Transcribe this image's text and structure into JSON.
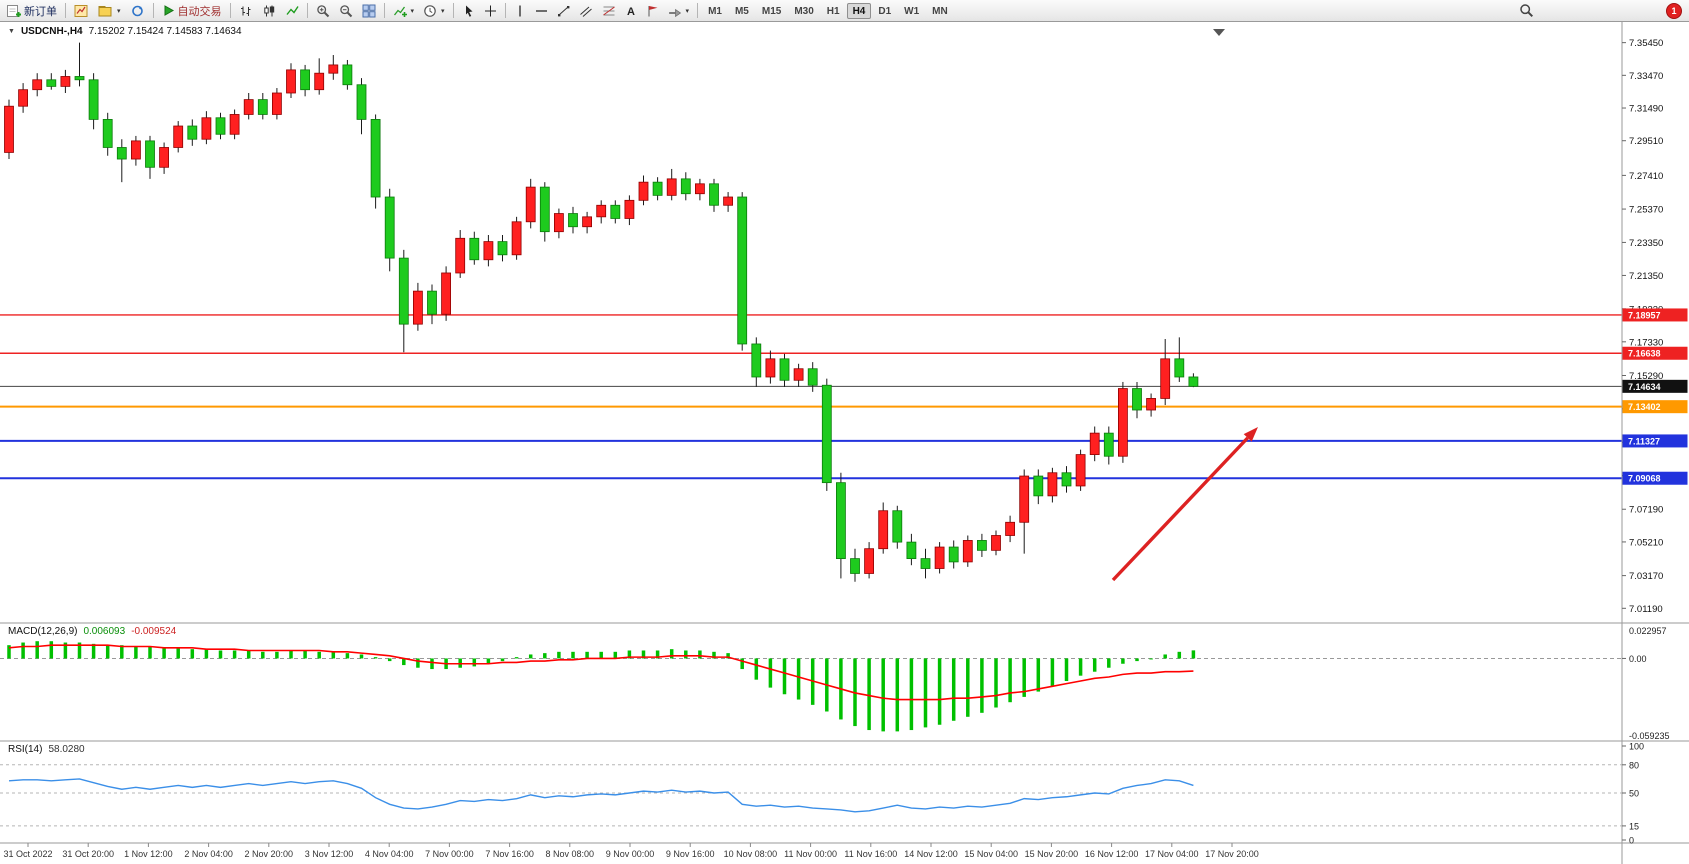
{
  "toolbar": {
    "new_order_label": "新订单",
    "autotrade_label": "自动交易",
    "timeframes": [
      "M1",
      "M5",
      "M15",
      "M30",
      "H1",
      "H4",
      "D1",
      "W1",
      "MN"
    ],
    "active_timeframe": "H4",
    "notification_count": "1"
  },
  "chart": {
    "title": "USDCNH-,H4",
    "quote_line": "7.15202 7.15424 7.14583 7.14634"
  },
  "macd": {
    "name": "MACD(12,26,9)",
    "value_main": "0.006093",
    "value_signal": "-0.009524",
    "scale": [
      "0.022957",
      "0.00",
      "-0.059235"
    ]
  },
  "rsi": {
    "name": "RSI(14)",
    "value": "58.0280",
    "scale": [
      "100",
      "80",
      "50",
      "15",
      "0"
    ]
  },
  "chart_data": {
    "type": "candlestick",
    "symbol": "USDCNH-",
    "period": "H4",
    "title": "USDCNH-,H4",
    "ylim": [
      7.003,
      7.367
    ],
    "up_color": "#ff2020",
    "down_color": "#1ecb1e",
    "price_ticks": [
      "7.35450",
      "7.33470",
      "7.31490",
      "7.29510",
      "7.27410",
      "7.25370",
      "7.23350",
      "7.21350",
      "7.19330",
      "7.17330",
      "7.15290",
      "7.13270",
      "7.11250",
      "7.09230",
      "7.07190",
      "7.05210",
      "7.03170",
      "7.01190"
    ],
    "hlines": [
      {
        "price": 7.18957,
        "label": "7.18957",
        "color": "#ee2222",
        "width": 1.4
      },
      {
        "price": 7.16638,
        "label": "7.16638",
        "color": "#ee2222",
        "width": 1.4
      },
      {
        "price": 7.14634,
        "label": "7.14634",
        "color": "#444444",
        "width": 1,
        "badge": "#111111"
      },
      {
        "price": 7.13402,
        "label": "7.13402",
        "color": "#ff9900",
        "width": 2
      },
      {
        "price": 7.11327,
        "label": "7.11327",
        "color": "#2233dd",
        "width": 2
      },
      {
        "price": 7.09068,
        "label": "7.09068",
        "color": "#2233dd",
        "width": 2
      }
    ],
    "time_labels": [
      "31 Oct 2022",
      "31 Oct 20:00",
      "1 Nov 12:00",
      "2 Nov 04:00",
      "2 Nov 20:00",
      "3 Nov 12:00",
      "4 Nov 04:00",
      "7 Nov 00:00",
      "7 Nov 16:00",
      "8 Nov 08:00",
      "9 Nov 00:00",
      "9 Nov 16:00",
      "10 Nov 08:00",
      "11 Nov 00:00",
      "11 Nov 16:00",
      "14 Nov 12:00",
      "15 Nov 04:00",
      "15 Nov 20:00",
      "16 Nov 12:00",
      "17 Nov 04:00",
      "17 Nov 20:00"
    ],
    "ohlc": [
      [
        7.288,
        7.32,
        7.284,
        7.316
      ],
      [
        7.316,
        7.33,
        7.312,
        7.326
      ],
      [
        7.326,
        7.336,
        7.322,
        7.332
      ],
      [
        7.332,
        7.336,
        7.326,
        7.328
      ],
      [
        7.328,
        7.338,
        7.324,
        7.334
      ],
      [
        7.334,
        7.3545,
        7.328,
        7.332
      ],
      [
        7.332,
        7.336,
        7.302,
        7.308
      ],
      [
        7.308,
        7.312,
        7.286,
        7.291
      ],
      [
        7.291,
        7.296,
        7.27,
        7.284
      ],
      [
        7.284,
        7.298,
        7.28,
        7.295
      ],
      [
        7.295,
        7.298,
        7.272,
        7.279
      ],
      [
        7.279,
        7.294,
        7.275,
        7.291
      ],
      [
        7.291,
        7.307,
        7.288,
        7.304
      ],
      [
        7.304,
        7.308,
        7.292,
        7.296
      ],
      [
        7.296,
        7.313,
        7.293,
        7.309
      ],
      [
        7.309,
        7.312,
        7.296,
        7.299
      ],
      [
        7.299,
        7.314,
        7.296,
        7.311
      ],
      [
        7.311,
        7.324,
        7.308,
        7.32
      ],
      [
        7.32,
        7.324,
        7.308,
        7.311
      ],
      [
        7.311,
        7.327,
        7.308,
        7.324
      ],
      [
        7.324,
        7.342,
        7.321,
        7.338
      ],
      [
        7.338,
        7.341,
        7.322,
        7.326
      ],
      [
        7.326,
        7.345,
        7.323,
        7.336
      ],
      [
        7.336,
        7.347,
        7.332,
        7.341
      ],
      [
        7.341,
        7.344,
        7.326,
        7.329
      ],
      [
        7.329,
        7.333,
        7.299,
        7.308
      ],
      [
        7.308,
        7.311,
        7.254,
        7.261
      ],
      [
        7.261,
        7.266,
        7.216,
        7.224
      ],
      [
        7.224,
        7.229,
        7.167,
        7.184
      ],
      [
        7.184,
        7.209,
        7.18,
        7.204
      ],
      [
        7.204,
        7.208,
        7.184,
        7.19
      ],
      [
        7.19,
        7.219,
        7.186,
        7.215
      ],
      [
        7.215,
        7.241,
        7.212,
        7.236
      ],
      [
        7.236,
        7.24,
        7.22,
        7.223
      ],
      [
        7.223,
        7.238,
        7.219,
        7.234
      ],
      [
        7.234,
        7.238,
        7.222,
        7.226
      ],
      [
        7.226,
        7.249,
        7.223,
        7.246
      ],
      [
        7.246,
        7.272,
        7.242,
        7.267
      ],
      [
        7.267,
        7.27,
        7.234,
        7.24
      ],
      [
        7.24,
        7.254,
        7.236,
        7.251
      ],
      [
        7.251,
        7.255,
        7.239,
        7.243
      ],
      [
        7.243,
        7.252,
        7.239,
        7.249
      ],
      [
        7.249,
        7.259,
        7.245,
        7.256
      ],
      [
        7.256,
        7.259,
        7.245,
        7.248
      ],
      [
        7.248,
        7.262,
        7.244,
        7.259
      ],
      [
        7.259,
        7.274,
        7.256,
        7.27
      ],
      [
        7.27,
        7.273,
        7.259,
        7.262
      ],
      [
        7.262,
        7.278,
        7.259,
        7.272
      ],
      [
        7.272,
        7.276,
        7.259,
        7.263
      ],
      [
        7.263,
        7.272,
        7.259,
        7.269
      ],
      [
        7.269,
        7.272,
        7.252,
        7.256
      ],
      [
        7.256,
        7.264,
        7.252,
        7.261
      ],
      [
        7.261,
        7.264,
        7.168,
        7.172
      ],
      [
        7.172,
        7.176,
        7.146,
        7.152
      ],
      [
        7.152,
        7.168,
        7.148,
        7.163
      ],
      [
        7.163,
        7.166,
        7.146,
        7.15
      ],
      [
        7.15,
        7.16,
        7.146,
        7.157
      ],
      [
        7.157,
        7.161,
        7.143,
        7.147
      ],
      [
        7.147,
        7.151,
        7.083,
        7.088
      ],
      [
        7.088,
        7.094,
        7.03,
        7.042
      ],
      [
        7.042,
        7.048,
        7.028,
        7.033
      ],
      [
        7.033,
        7.052,
        7.03,
        7.048
      ],
      [
        7.048,
        7.076,
        7.045,
        7.071
      ],
      [
        7.071,
        7.074,
        7.048,
        7.052
      ],
      [
        7.052,
        7.057,
        7.038,
        7.042
      ],
      [
        7.042,
        7.048,
        7.03,
        7.036
      ],
      [
        7.036,
        7.052,
        7.033,
        7.049
      ],
      [
        7.049,
        7.053,
        7.036,
        7.04
      ],
      [
        7.04,
        7.056,
        7.037,
        7.053
      ],
      [
        7.053,
        7.057,
        7.043,
        7.047
      ],
      [
        7.047,
        7.059,
        7.044,
        7.056
      ],
      [
        7.056,
        7.068,
        7.052,
        7.064
      ],
      [
        7.064,
        7.096,
        7.045,
        7.092
      ],
      [
        7.092,
        7.096,
        7.075,
        7.08
      ],
      [
        7.08,
        7.097,
        7.076,
        7.094
      ],
      [
        7.094,
        7.098,
        7.082,
        7.086
      ],
      [
        7.086,
        7.108,
        7.083,
        7.105
      ],
      [
        7.105,
        7.122,
        7.101,
        7.118
      ],
      [
        7.118,
        7.122,
        7.099,
        7.104
      ],
      [
        7.104,
        7.149,
        7.1,
        7.145
      ],
      [
        7.145,
        7.149,
        7.127,
        7.132
      ],
      [
        7.132,
        7.142,
        7.128,
        7.139
      ],
      [
        7.139,
        7.175,
        7.135,
        7.163
      ],
      [
        7.163,
        7.176,
        7.149,
        7.152
      ],
      [
        7.15202,
        7.15424,
        7.14583,
        7.14634
      ]
    ],
    "annotations": [
      {
        "type": "arrow",
        "color": "#dd2222",
        "from": [
          1113,
          580
        ],
        "to": [
          1258,
          427
        ]
      }
    ],
    "macd": {
      "ylim": [
        -0.059235,
        0.022957
      ],
      "hist_color": "#00c000",
      "signal_color": "#ff0000",
      "histogram": [
        0.01,
        0.012,
        0.013,
        0.013,
        0.012,
        0.012,
        0.011,
        0.01,
        0.01,
        0.009,
        0.009,
        0.008,
        0.008,
        0.007,
        0.007,
        0.006,
        0.006,
        0.006,
        0.005,
        0.005,
        0.006,
        0.006,
        0.005,
        0.005,
        0.004,
        0.003,
        0.001,
        -0.002,
        -0.005,
        -0.007,
        -0.008,
        -0.008,
        -0.007,
        -0.006,
        -0.004,
        -0.002,
        0.001,
        0.003,
        0.004,
        0.005,
        0.005,
        0.005,
        0.005,
        0.005,
        0.006,
        0.006,
        0.006,
        0.007,
        0.006,
        0.006,
        0.005,
        0.004,
        -0.008,
        -0.016,
        -0.022,
        -0.027,
        -0.031,
        -0.035,
        -0.04,
        -0.046,
        -0.051,
        -0.054,
        -0.055,
        -0.055,
        -0.054,
        -0.052,
        -0.05,
        -0.047,
        -0.044,
        -0.041,
        -0.037,
        -0.033,
        -0.029,
        -0.025,
        -0.021,
        -0.017,
        -0.013,
        -0.01,
        -0.007,
        -0.004,
        -0.002,
        0.0,
        0.003,
        0.005,
        0.006093
      ],
      "signal": [
        0.008,
        0.009,
        0.009,
        0.01,
        0.01,
        0.01,
        0.01,
        0.01,
        0.009,
        0.009,
        0.009,
        0.008,
        0.008,
        0.008,
        0.007,
        0.007,
        0.007,
        0.006,
        0.006,
        0.006,
        0.006,
        0.006,
        0.006,
        0.005,
        0.005,
        0.004,
        0.003,
        0.002,
        0.0,
        -0.002,
        -0.003,
        -0.004,
        -0.004,
        -0.004,
        -0.004,
        -0.003,
        -0.003,
        -0.002,
        -0.002,
        -0.001,
        -0.001,
        0.0,
        0.0,
        0.0,
        0.001,
        0.001,
        0.001,
        0.002,
        0.002,
        0.002,
        0.001,
        0.001,
        -0.002,
        -0.005,
        -0.008,
        -0.011,
        -0.014,
        -0.017,
        -0.02,
        -0.023,
        -0.026,
        -0.028,
        -0.03,
        -0.031,
        -0.031,
        -0.031,
        -0.031,
        -0.03,
        -0.03,
        -0.029,
        -0.028,
        -0.026,
        -0.025,
        -0.023,
        -0.021,
        -0.019,
        -0.017,
        -0.015,
        -0.014,
        -0.012,
        -0.011,
        -0.011,
        -0.01,
        -0.01,
        -0.009524
      ]
    },
    "rsi": {
      "ylim": [
        0,
        100
      ],
      "levels": [
        80,
        50,
        15
      ],
      "color": "#3b8fe8",
      "values": [
        63,
        64,
        64,
        63,
        64,
        65,
        61,
        57,
        54,
        56,
        54,
        56,
        58,
        56,
        58,
        56,
        58,
        60,
        58,
        60,
        62,
        60,
        62,
        63,
        60,
        55,
        45,
        38,
        34,
        33,
        35,
        38,
        42,
        41,
        43,
        42,
        44,
        48,
        45,
        47,
        46,
        48,
        49,
        48,
        50,
        52,
        51,
        53,
        51,
        52,
        50,
        51,
        38,
        36,
        37,
        35,
        36,
        34,
        33,
        32,
        30,
        31,
        34,
        37,
        34,
        33,
        35,
        34,
        36,
        35,
        37,
        39,
        44,
        43,
        45,
        46,
        48,
        50,
        49,
        55,
        58,
        60,
        64,
        63,
        58.028
      ]
    }
  }
}
